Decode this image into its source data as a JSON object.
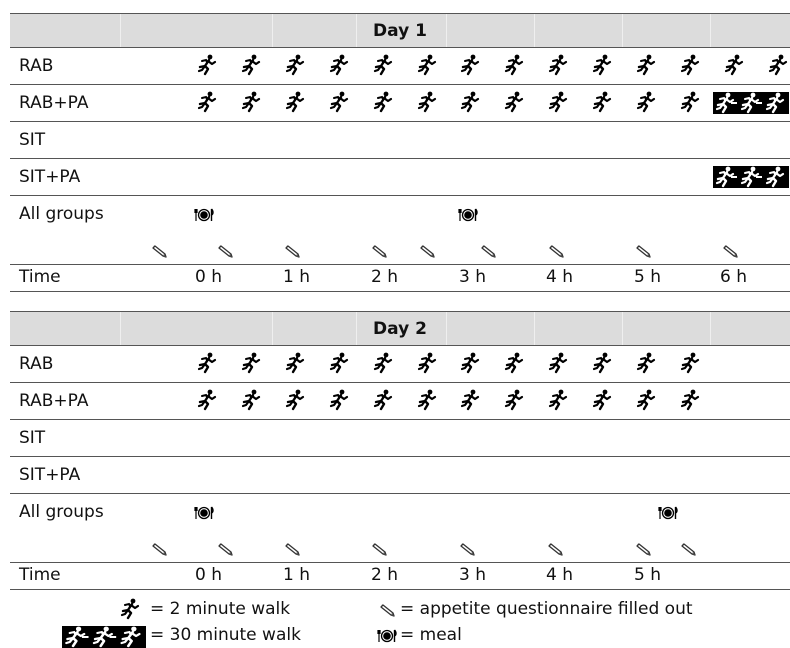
{
  "day1": {
    "title": "Day 1",
    "rows": {
      "rab": "RAB",
      "rabpa": "RAB+PA",
      "sit": "SIT",
      "sitpa": "SIT+PA",
      "all": "All groups",
      "time": "Time"
    },
    "times": [
      "0 h",
      "1 h",
      "2 h",
      "3 h",
      "4 h",
      "5 h",
      "6 h"
    ]
  },
  "day2": {
    "title": "Day 2",
    "rows": {
      "rab": "RAB",
      "rabpa": "RAB+PA",
      "sit": "SIT",
      "sitpa": "SIT+PA",
      "all": "All groups",
      "time": "Time"
    },
    "times": [
      "0 h",
      "1 h",
      "2 h",
      "3 h",
      "4 h",
      "5 h"
    ]
  },
  "legend": {
    "walk2": "= 2 minute walk",
    "walk30": "= 30 minute walk",
    "questionnaire": "= appetite questionnaire filled out",
    "meal": "= meal"
  },
  "icons": {
    "walk": "runner-icon",
    "long_walk": "long-walk-icon",
    "questionnaire": "pencil-icon",
    "meal": "meal-icon"
  }
}
